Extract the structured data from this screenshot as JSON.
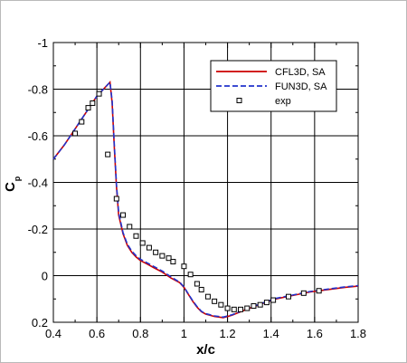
{
  "chart_data": {
    "type": "line",
    "xlabel": "x/c",
    "ylabel_main": "C",
    "ylabel_sub": "p",
    "xlim": [
      0.4,
      1.8
    ],
    "ylim": [
      0.2,
      -1.0
    ],
    "y_inverted": true,
    "grid": true,
    "legend_position": "top-right",
    "x_ticks": [
      "0.4",
      "0.6",
      "0.8",
      "1",
      "1.2",
      "1.4",
      "1.6",
      "1.8"
    ],
    "y_ticks": [
      "-1",
      "-0.8",
      "-0.6",
      "-0.4",
      "-0.2",
      "0",
      "0.2"
    ],
    "series": [
      {
        "name": "CFL3D, SA",
        "style": "solid",
        "color": "#cc0000",
        "x": [
          0.4,
          0.45,
          0.5,
          0.55,
          0.6,
          0.64,
          0.66,
          0.67,
          0.68,
          0.69,
          0.7,
          0.72,
          0.74,
          0.76,
          0.78,
          0.8,
          0.83,
          0.86,
          0.9,
          0.94,
          0.98,
          1.0,
          1.02,
          1.04,
          1.06,
          1.08,
          1.1,
          1.14,
          1.18,
          1.22,
          1.26,
          1.3,
          1.36,
          1.42,
          1.5,
          1.58,
          1.66,
          1.74,
          1.8
        ],
        "y": [
          -0.5,
          -0.56,
          -0.63,
          -0.7,
          -0.77,
          -0.81,
          -0.83,
          -0.74,
          -0.55,
          -0.38,
          -0.26,
          -0.18,
          -0.13,
          -0.1,
          -0.08,
          -0.065,
          -0.05,
          -0.035,
          -0.015,
          0.01,
          0.03,
          0.05,
          0.08,
          0.11,
          0.135,
          0.155,
          0.165,
          0.175,
          0.18,
          0.17,
          0.155,
          0.14,
          0.12,
          0.1,
          0.085,
          0.07,
          0.06,
          0.05,
          0.045
        ]
      },
      {
        "name": "FUN3D, SA",
        "style": "dashed",
        "color": "#2233cc",
        "x": [
          0.4,
          0.45,
          0.5,
          0.55,
          0.6,
          0.64,
          0.66,
          0.67,
          0.68,
          0.69,
          0.7,
          0.72,
          0.74,
          0.76,
          0.78,
          0.8,
          0.83,
          0.86,
          0.9,
          0.94,
          0.98,
          1.0,
          1.02,
          1.04,
          1.06,
          1.08,
          1.1,
          1.14,
          1.18,
          1.22,
          1.26,
          1.3,
          1.36,
          1.42,
          1.5,
          1.58,
          1.66,
          1.74,
          1.8
        ],
        "y": [
          -0.5,
          -0.56,
          -0.63,
          -0.7,
          -0.77,
          -0.81,
          -0.83,
          -0.75,
          -0.56,
          -0.39,
          -0.27,
          -0.185,
          -0.135,
          -0.105,
          -0.085,
          -0.07,
          -0.055,
          -0.04,
          -0.02,
          0.005,
          0.028,
          0.048,
          0.078,
          0.108,
          0.133,
          0.153,
          0.163,
          0.173,
          0.178,
          0.168,
          0.153,
          0.138,
          0.118,
          0.098,
          0.083,
          0.068,
          0.058,
          0.048,
          0.043
        ]
      },
      {
        "name": "exp",
        "style": "markers",
        "color": "#000000",
        "x": [
          0.5,
          0.53,
          0.56,
          0.58,
          0.61,
          0.65,
          0.69,
          0.72,
          0.75,
          0.78,
          0.81,
          0.84,
          0.87,
          0.9,
          0.93,
          0.95,
          1.0,
          1.03,
          1.06,
          1.08,
          1.11,
          1.14,
          1.17,
          1.2,
          1.23,
          1.26,
          1.29,
          1.32,
          1.35,
          1.38,
          1.41,
          1.48,
          1.55,
          1.62
        ],
        "y": [
          -0.61,
          -0.66,
          -0.72,
          -0.74,
          -0.78,
          -0.52,
          -0.33,
          -0.26,
          -0.21,
          -0.17,
          -0.14,
          -0.12,
          -0.1,
          -0.085,
          -0.075,
          -0.06,
          -0.04,
          -0.005,
          0.035,
          0.06,
          0.09,
          0.11,
          0.125,
          0.14,
          0.145,
          0.145,
          0.14,
          0.13,
          0.125,
          0.115,
          0.105,
          0.09,
          0.075,
          0.065
        ]
      }
    ]
  }
}
